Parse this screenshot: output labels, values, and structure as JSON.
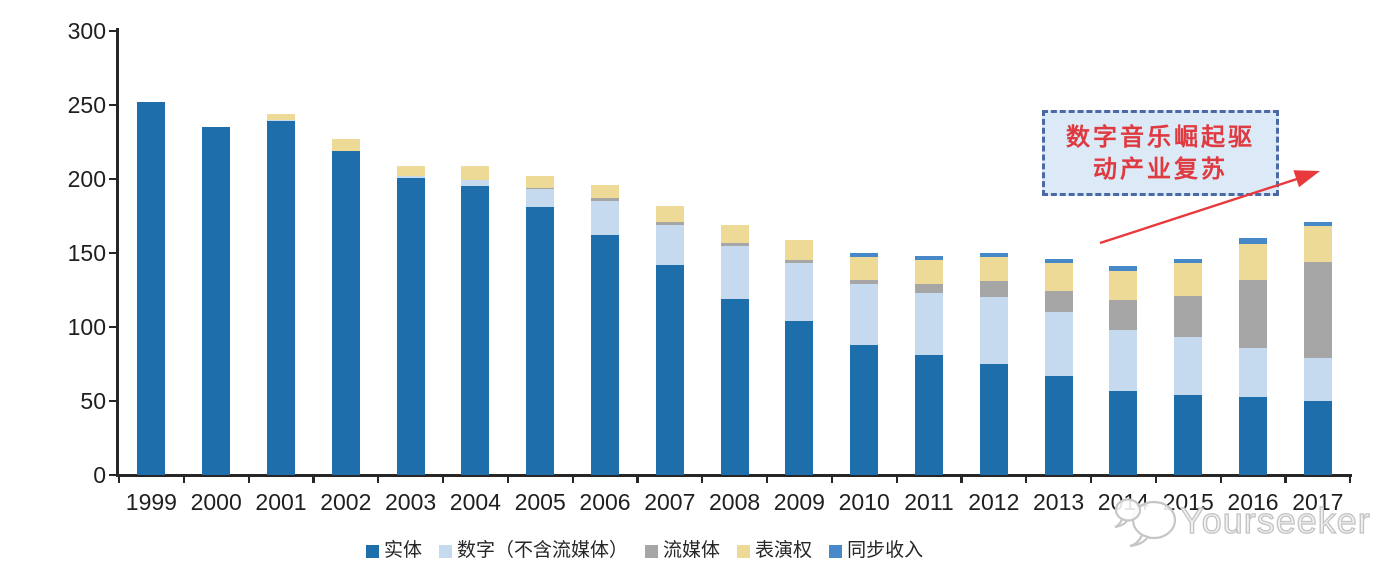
{
  "chart_data": {
    "type": "bar",
    "stacked": true,
    "title": "",
    "xlabel": "",
    "ylabel": "",
    "categories": [
      "1999",
      "2000",
      "2001",
      "2002",
      "2003",
      "2004",
      "2005",
      "2006",
      "2007",
      "2008",
      "2009",
      "2010",
      "2011",
      "2012",
      "2013",
      "2014",
      "2015",
      "2016",
      "2017"
    ],
    "series": [
      {
        "name": "实体",
        "color": "#1f6eac",
        "values": [
          252,
          235,
          239,
          219,
          201,
          195,
          181,
          162,
          142,
          119,
          104,
          88,
          81,
          75,
          67,
          57,
          54,
          53,
          50
        ]
      },
      {
        "name": "数字（不含流媒体）",
        "color": "#c5daef",
        "values": [
          0,
          0,
          1,
          0,
          1,
          4,
          12,
          23,
          27,
          36,
          39,
          41,
          42,
          45,
          43,
          41,
          39,
          33,
          29
        ]
      },
      {
        "name": "流媒体",
        "color": "#a6a6a6",
        "values": [
          0,
          0,
          0,
          0,
          0,
          0,
          1,
          2,
          2,
          2,
          2,
          3,
          6,
          11,
          14,
          20,
          28,
          46,
          65
        ]
      },
      {
        "name": "表演权",
        "color": "#ecda96",
        "values": [
          0,
          0,
          4,
          8,
          7,
          10,
          8,
          9,
          11,
          12,
          14,
          15,
          16,
          16,
          19,
          20,
          22,
          24,
          24
        ]
      },
      {
        "name": "同步收入",
        "color": "#4788c8",
        "values": [
          0,
          0,
          0,
          0,
          0,
          0,
          0,
          0,
          0,
          0,
          0,
          3,
          3,
          3,
          3,
          3,
          3,
          4,
          3
        ]
      }
    ],
    "ylim": [
      0,
      300
    ],
    "yticks": [
      0,
      50,
      100,
      150,
      200,
      250,
      300
    ],
    "grid": false,
    "legend_position": "bottom"
  },
  "annotation": {
    "line1": "数字音乐崛起驱",
    "line2": "动产业复苏"
  },
  "watermark": {
    "text": "Yourseeker",
    "logo": "speech-bubbles-logo"
  },
  "colors": {
    "axis": "#262626",
    "annotation_border": "#4a69a5",
    "annotation_fill": "#dce9f7",
    "annotation_text": "#de3a40",
    "arrow": "#e8393d"
  }
}
